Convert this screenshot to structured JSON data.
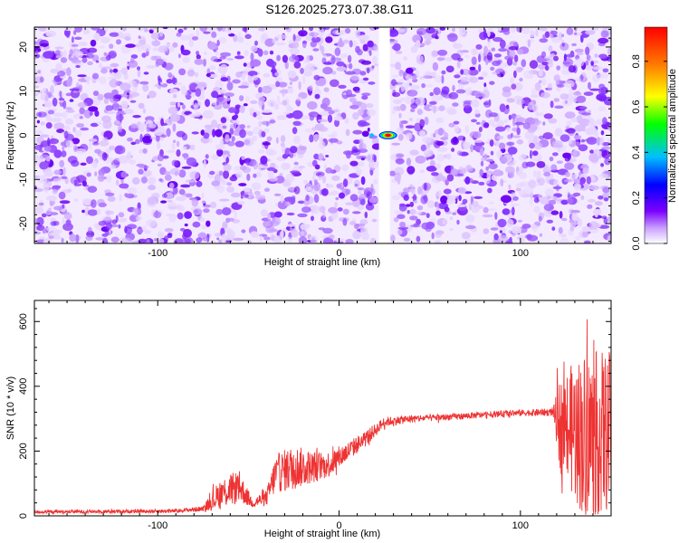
{
  "title": "S126.2025.273.07.38.G11",
  "chart_data": [
    {
      "type": "heatmap",
      "xlabel": "Height of straight line (km)",
      "ylabel": "Frequency (Hz)",
      "xlim": [
        -168,
        150
      ],
      "ylim": [
        -24.5,
        24.5
      ],
      "x_ticks": [
        -100,
        0,
        100
      ],
      "y_ticks": [
        -20,
        -10,
        0,
        10,
        20
      ],
      "colorbar": {
        "label": "Normalized spectral amplitude",
        "range": [
          0,
          0.95
        ],
        "ticks": [
          "0.0",
          "0.2",
          "0.4",
          "0.6",
          "0.8"
        ],
        "colors": [
          "#ffffff",
          "#b37bff",
          "#7b00ff",
          "#0000ff",
          "#00c0ff",
          "#00ff00",
          "#ffff00",
          "#ff8000",
          "#ff0000"
        ]
      },
      "gap_x": [
        22,
        28
      ],
      "peak": {
        "x": 27,
        "y": 0,
        "value": 0.95
      }
    },
    {
      "type": "line",
      "xlabel": "Height of straight line (km)",
      "ylabel": "SNR (10 * v/v)",
      "xlim": [
        -168,
        150
      ],
      "ylim": [
        0,
        665
      ],
      "x_ticks": [
        -100,
        0,
        100
      ],
      "y_ticks": [
        0,
        200,
        400,
        600
      ],
      "color": "#ee3333",
      "profile": [
        {
          "x": -168,
          "y": 12,
          "noise": 5
        },
        {
          "x": -90,
          "y": 15,
          "noise": 6
        },
        {
          "x": -75,
          "y": 22,
          "noise": 8
        },
        {
          "x": -65,
          "y": 70,
          "noise": 50
        },
        {
          "x": -55,
          "y": 90,
          "noise": 50
        },
        {
          "x": -48,
          "y": 40,
          "noise": 15
        },
        {
          "x": -40,
          "y": 55,
          "noise": 25
        },
        {
          "x": -35,
          "y": 130,
          "noise": 60
        },
        {
          "x": -25,
          "y": 150,
          "noise": 70
        },
        {
          "x": -15,
          "y": 150,
          "noise": 50
        },
        {
          "x": -5,
          "y": 160,
          "noise": 40
        },
        {
          "x": 5,
          "y": 200,
          "noise": 30
        },
        {
          "x": 15,
          "y": 240,
          "noise": 25
        },
        {
          "x": 25,
          "y": 290,
          "noise": 15
        },
        {
          "x": 40,
          "y": 300,
          "noise": 12
        },
        {
          "x": 60,
          "y": 305,
          "noise": 10
        },
        {
          "x": 80,
          "y": 312,
          "noise": 10
        },
        {
          "x": 100,
          "y": 318,
          "noise": 10
        },
        {
          "x": 118,
          "y": 320,
          "noise": 12
        },
        {
          "x": 122,
          "y": 280,
          "noise": 150
        },
        {
          "x": 135,
          "y": 250,
          "noise": 260
        },
        {
          "x": 150,
          "y": 260,
          "noise": 250
        }
      ]
    }
  ]
}
